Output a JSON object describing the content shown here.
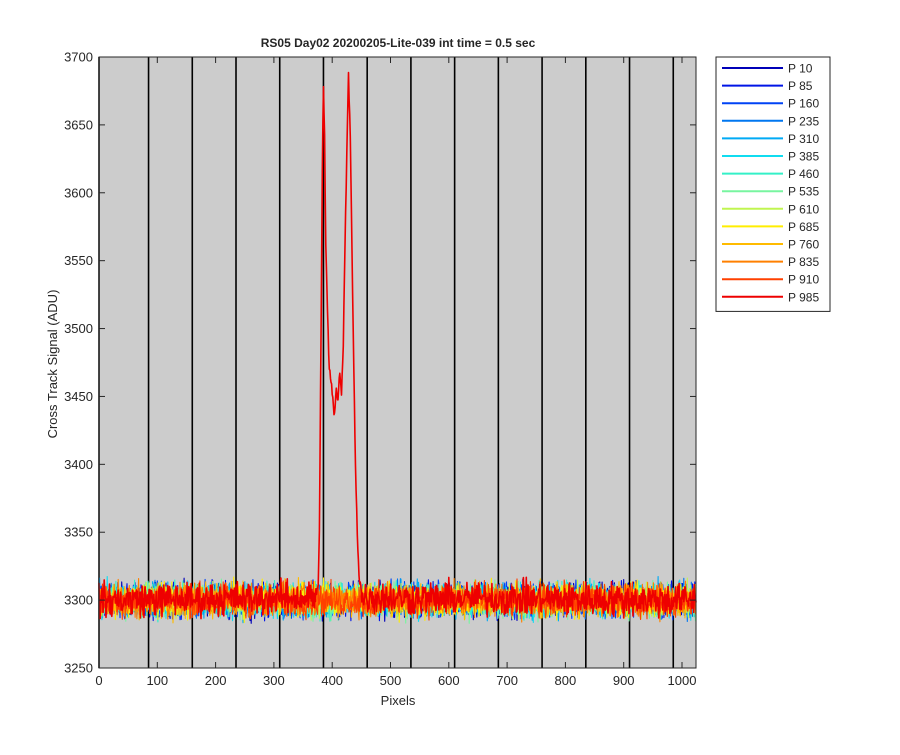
{
  "chart_data": {
    "type": "line",
    "title": "RS05 Day02 20200205-Lite-039 int time = 0.5 sec",
    "xlabel": "Pixels",
    "ylabel": "Cross Track Signal (ADU)",
    "xlim": [
      0,
      1024
    ],
    "ylim": [
      3250,
      3700
    ],
    "xticks": [
      0,
      100,
      200,
      300,
      400,
      500,
      600,
      700,
      800,
      900,
      1000
    ],
    "yticks": [
      3250,
      3300,
      3350,
      3400,
      3450,
      3500,
      3550,
      3600,
      3650,
      3700
    ],
    "vertical_lines_x": [
      0,
      85,
      160,
      235,
      310,
      385,
      460,
      535,
      610,
      685,
      760,
      835,
      910,
      985
    ],
    "background_color": "#cccccc",
    "grid": false,
    "legend_position": "outside-top-right",
    "baseline": 3300,
    "noise_amplitude": 12,
    "series": [
      {
        "name": "P 10",
        "color": "#0000b8"
      },
      {
        "name": "P 85",
        "color": "#0015e6"
      },
      {
        "name": "P 160",
        "color": "#0043f5"
      },
      {
        "name": "P 235",
        "color": "#0077f0"
      },
      {
        "name": "P 310",
        "color": "#00aaf5"
      },
      {
        "name": "P 385",
        "color": "#10dcf0"
      },
      {
        "name": "P 460",
        "color": "#34f0c8"
      },
      {
        "name": "P 535",
        "color": "#78f5a0"
      },
      {
        "name": "P 610",
        "color": "#c0f550"
      },
      {
        "name": "P 685",
        "color": "#ffee00"
      },
      {
        "name": "P 760",
        "color": "#ffbb00"
      },
      {
        "name": "P 835",
        "color": "#ff8000"
      },
      {
        "name": "P 910",
        "color": "#ff4000"
      },
      {
        "name": "P 985",
        "color": "#ee0000"
      }
    ],
    "feature_series": {
      "name": "P 985",
      "points": [
        [
          0,
          3300
        ],
        [
          370,
          3302
        ],
        [
          376,
          3310
        ],
        [
          378,
          3350
        ],
        [
          381,
          3500
        ],
        [
          383,
          3620
        ],
        [
          385,
          3682
        ],
        [
          387,
          3640
        ],
        [
          389,
          3560
        ],
        [
          392,
          3510
        ],
        [
          395,
          3470
        ],
        [
          398,
          3462
        ],
        [
          401,
          3448
        ],
        [
          404,
          3436
        ],
        [
          407,
          3455
        ],
        [
          410,
          3446
        ],
        [
          413,
          3468
        ],
        [
          416,
          3450
        ],
        [
          419,
          3490
        ],
        [
          422,
          3560
        ],
        [
          425,
          3630
        ],
        [
          428,
          3686
        ],
        [
          431,
          3640
        ],
        [
          434,
          3560
        ],
        [
          437,
          3470
        ],
        [
          440,
          3400
        ],
        [
          443,
          3350
        ],
        [
          446,
          3318
        ],
        [
          450,
          3302
        ],
        [
          1024,
          3300
        ]
      ]
    }
  }
}
